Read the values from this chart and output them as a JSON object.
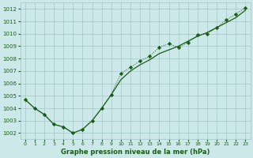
{
  "title": "Graphe pression niveau de la mer (hPa)",
  "background_color": "#cce8e8",
  "grid_color": "#aacccc",
  "line_color": "#1a5c1a",
  "x_labels": [
    "0",
    "1",
    "2",
    "3",
    "4",
    "5",
    "6",
    "7",
    "8",
    "9",
    "10",
    "11",
    "12",
    "13",
    "14",
    "15",
    "16",
    "17",
    "18",
    "19",
    "20",
    "21",
    "22",
    "23"
  ],
  "ylim": [
    1001.5,
    1012.5
  ],
  "yticks": [
    1002,
    1003,
    1004,
    1005,
    1006,
    1007,
    1008,
    1009,
    1010,
    1011,
    1012
  ],
  "series_smooth": [
    1004.7,
    1004.0,
    1003.5,
    1002.7,
    1002.5,
    1002.0,
    1002.3,
    1003.0,
    1004.0,
    1005.1,
    1006.3,
    1007.0,
    1007.5,
    1007.9,
    1008.4,
    1008.7,
    1009.0,
    1009.4,
    1009.8,
    1010.1,
    1010.5,
    1010.9,
    1011.3,
    1011.9
  ],
  "series_dotted": [
    1004.7,
    1004.0,
    1003.5,
    1002.7,
    1002.5,
    1002.0,
    1002.3,
    1003.0,
    1004.0,
    1005.1,
    1006.8,
    1007.3,
    1007.8,
    1008.2,
    1008.9,
    1009.2,
    1008.9,
    1009.3,
    1009.9,
    1010.0,
    1010.5,
    1011.1,
    1011.6,
    1012.1
  ]
}
